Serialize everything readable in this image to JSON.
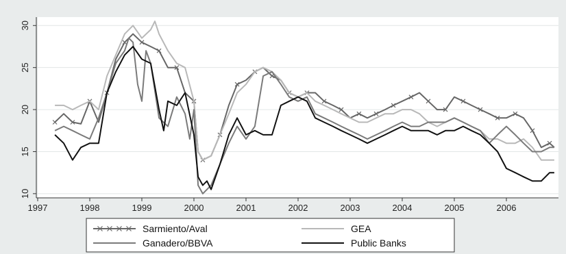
{
  "chart_data": {
    "type": "line",
    "title": "",
    "xlabel": "",
    "ylabel": "",
    "xlim": [
      1997,
      2007
    ],
    "ylim": [
      9.5,
      31
    ],
    "x_ticks": [
      1997,
      1998,
      1999,
      2000,
      2001,
      2002,
      2003,
      2004,
      2005,
      2006
    ],
    "y_ticks": [
      10,
      15,
      20,
      25,
      30
    ],
    "grid": "horizontal",
    "legend_position": "bottom",
    "series": [
      {
        "name": "Sarmiento/Aval",
        "color": "#666666",
        "marker": "x",
        "x": [
          1997.33,
          1997.5,
          1997.67,
          1997.83,
          1998.0,
          1998.17,
          1998.33,
          1998.5,
          1998.67,
          1998.83,
          1999.0,
          1999.17,
          1999.33,
          1999.5,
          1999.67,
          1999.83,
          2000.0,
          2000.08,
          2000.17,
          2000.33,
          2000.5,
          2000.67,
          2000.83,
          2001.0,
          2001.17,
          2001.33,
          2001.5,
          2001.67,
          2001.83,
          2002.0,
          2002.17,
          2002.33,
          2002.5,
          2002.67,
          2002.83,
          2003.0,
          2003.17,
          2003.33,
          2003.5,
          2003.67,
          2003.83,
          2004.0,
          2004.17,
          2004.33,
          2004.5,
          2004.67,
          2004.83,
          2005.0,
          2005.17,
          2005.33,
          2005.5,
          2005.67,
          2005.83,
          2006.0,
          2006.17,
          2006.33,
          2006.5,
          2006.67,
          2006.83,
          2006.92
        ],
        "y": [
          18.5,
          19.5,
          18.5,
          18.3,
          21.0,
          18.5,
          22.0,
          26.0,
          28.0,
          29.0,
          28.0,
          27.5,
          27.0,
          25.0,
          25.0,
          22.0,
          21.0,
          15.0,
          14.0,
          14.5,
          17.0,
          20.5,
          23.0,
          23.5,
          24.5,
          25.0,
          24.0,
          23.5,
          22.0,
          21.5,
          22.0,
          22.0,
          21.0,
          20.5,
          20.0,
          19.0,
          19.5,
          19.0,
          19.5,
          20.0,
          20.5,
          21.0,
          21.5,
          22.0,
          21.0,
          20.0,
          20.0,
          21.5,
          21.0,
          20.5,
          20.0,
          19.5,
          19.0,
          19.0,
          19.5,
          19.0,
          17.5,
          15.5,
          16.0,
          15.5
        ]
      },
      {
        "name": "GEA",
        "color": "#b8b8b8",
        "marker": "",
        "x": [
          1997.33,
          1997.5,
          1997.67,
          1997.83,
          1998.0,
          1998.17,
          1998.33,
          1998.5,
          1998.67,
          1998.83,
          1999.0,
          1999.17,
          1999.25,
          1999.33,
          1999.5,
          1999.67,
          1999.83,
          2000.0,
          2000.08,
          2000.17,
          2000.33,
          2000.5,
          2000.67,
          2000.83,
          2001.0,
          2001.17,
          2001.33,
          2001.5,
          2001.67,
          2001.83,
          2002.0,
          2002.17,
          2002.33,
          2002.5,
          2002.67,
          2002.83,
          2003.0,
          2003.17,
          2003.33,
          2003.5,
          2003.67,
          2003.83,
          2004.0,
          2004.17,
          2004.33,
          2004.5,
          2004.67,
          2004.83,
          2005.0,
          2005.17,
          2005.33,
          2005.5,
          2005.67,
          2005.83,
          2006.0,
          2006.17,
          2006.33,
          2006.5,
          2006.67,
          2006.83,
          2006.92
        ],
        "y": [
          20.5,
          20.5,
          20.0,
          20.5,
          21.0,
          20.0,
          24.0,
          26.5,
          29.0,
          30.0,
          28.5,
          29.5,
          30.5,
          29.0,
          27.0,
          25.5,
          25.0,
          21.0,
          15.0,
          14.0,
          14.5,
          17.0,
          19.5,
          22.0,
          23.0,
          24.5,
          25.0,
          24.5,
          23.5,
          22.0,
          21.5,
          22.0,
          21.0,
          20.5,
          20.0,
          19.5,
          19.0,
          18.5,
          18.5,
          19.0,
          19.5,
          19.5,
          20.0,
          20.0,
          19.5,
          18.5,
          18.0,
          18.5,
          19.0,
          18.5,
          18.0,
          17.5,
          16.5,
          16.5,
          16.0,
          16.0,
          16.5,
          15.5,
          14.0,
          14.0,
          14.0
        ]
      },
      {
        "name": "Ganadero/BBVA",
        "color": "#7a7a7a",
        "marker": "",
        "x": [
          1997.33,
          1997.5,
          1997.67,
          1997.83,
          1998.0,
          1998.17,
          1998.33,
          1998.5,
          1998.67,
          1998.75,
          1998.83,
          1998.92,
          1999.0,
          1999.08,
          1999.17,
          1999.33,
          1999.5,
          1999.67,
          1999.83,
          1999.92,
          2000.0,
          2000.08,
          2000.17,
          2000.33,
          2000.5,
          2000.67,
          2000.83,
          2001.0,
          2001.17,
          2001.33,
          2001.5,
          2001.67,
          2001.83,
          2002.0,
          2002.17,
          2002.33,
          2002.5,
          2002.67,
          2002.83,
          2003.0,
          2003.17,
          2003.33,
          2003.5,
          2003.67,
          2003.83,
          2004.0,
          2004.17,
          2004.33,
          2004.5,
          2004.67,
          2004.83,
          2005.0,
          2005.17,
          2005.33,
          2005.5,
          2005.67,
          2005.83,
          2006.0,
          2006.17,
          2006.33,
          2006.5,
          2006.67,
          2006.83,
          2006.92
        ],
        "y": [
          17.5,
          18.0,
          17.5,
          17.0,
          16.5,
          19.0,
          22.0,
          25.5,
          27.0,
          28.5,
          28.0,
          23.0,
          21.0,
          27.0,
          25.5,
          19.0,
          18.0,
          21.5,
          19.5,
          16.5,
          20.0,
          11.0,
          10.0,
          11.0,
          13.5,
          16.0,
          18.0,
          16.5,
          18.0,
          24.0,
          24.5,
          23.0,
          21.5,
          21.0,
          21.5,
          19.5,
          19.0,
          18.5,
          18.0,
          17.5,
          17.0,
          16.5,
          17.0,
          17.5,
          18.0,
          18.5,
          18.0,
          18.0,
          18.5,
          18.5,
          18.5,
          19.0,
          18.5,
          18.0,
          17.5,
          16.0,
          17.0,
          18.0,
          17.0,
          16.0,
          15.0,
          15.0,
          15.5,
          15.5
        ]
      },
      {
        "name": "Public Banks",
        "color": "#111111",
        "marker": "",
        "x": [
          1997.33,
          1997.5,
          1997.67,
          1997.83,
          1998.0,
          1998.17,
          1998.33,
          1998.5,
          1998.67,
          1998.83,
          1999.0,
          1999.17,
          1999.33,
          1999.42,
          1999.5,
          1999.67,
          1999.83,
          2000.0,
          2000.08,
          2000.17,
          2000.25,
          2000.33,
          2000.5,
          2000.67,
          2000.83,
          2001.0,
          2001.17,
          2001.33,
          2001.5,
          2001.67,
          2001.83,
          2002.0,
          2002.17,
          2002.33,
          2002.5,
          2002.67,
          2002.83,
          2003.0,
          2003.17,
          2003.33,
          2003.5,
          2003.67,
          2003.83,
          2004.0,
          2004.17,
          2004.33,
          2004.5,
          2004.67,
          2004.83,
          2005.0,
          2005.17,
          2005.33,
          2005.5,
          2005.67,
          2005.83,
          2006.0,
          2006.17,
          2006.33,
          2006.5,
          2006.67,
          2006.83,
          2006.92
        ],
        "y": [
          17.0,
          16.0,
          14.0,
          15.5,
          16.0,
          16.0,
          22.0,
          24.5,
          26.5,
          27.5,
          26.0,
          25.5,
          20.0,
          17.5,
          21.0,
          20.5,
          22.0,
          17.0,
          12.0,
          11.0,
          11.5,
          10.5,
          13.5,
          17.0,
          19.0,
          17.0,
          17.5,
          17.0,
          17.0,
          20.5,
          21.0,
          21.5,
          21.0,
          19.0,
          18.5,
          18.0,
          17.5,
          17.0,
          16.5,
          16.0,
          16.5,
          17.0,
          17.5,
          18.0,
          17.5,
          17.5,
          17.5,
          17.0,
          17.5,
          17.5,
          18.0,
          17.5,
          17.0,
          16.0,
          15.0,
          13.0,
          12.5,
          12.0,
          11.5,
          11.5,
          12.5,
          12.5
        ]
      }
    ]
  }
}
